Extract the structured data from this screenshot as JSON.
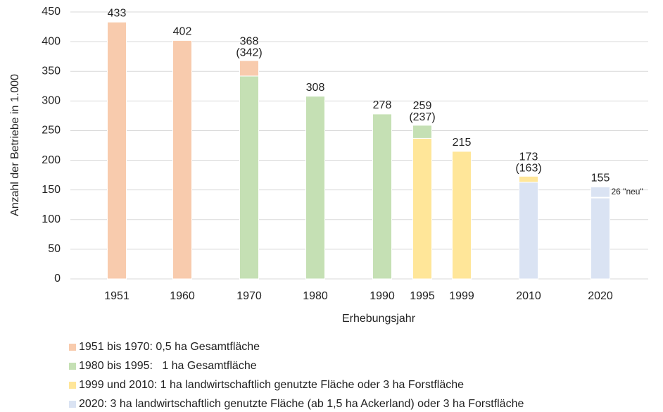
{
  "chart_data": {
    "type": "stacked_bar",
    "y_label": "Anzahl der Betriebe in 1.000",
    "x_label": "Erhebungsjahr",
    "categories": [
      "1951",
      "1960",
      "1970",
      "1980",
      "1990",
      "1995",
      "1999",
      "2010",
      "2020"
    ],
    "series": [
      {
        "name": "1951 bis 1970: 0,5 ha Gesamtfläche",
        "color": "#f8cbad",
        "values": [
          433,
          402,
          26,
          null,
          null,
          null,
          null,
          null,
          null
        ]
      },
      {
        "name": "1980 bis 1995:   1 ha Gesamtfläche",
        "color": "#c5e0b4",
        "values": [
          null,
          null,
          342,
          308,
          278,
          22,
          null,
          null,
          null
        ]
      },
      {
        "name": "1999 und 2010: 1 ha landwirtschaftlich genutzte Fläche oder 3 ha Forstfläche",
        "color": "#ffe699",
        "values": [
          null,
          null,
          null,
          null,
          null,
          237,
          215,
          10,
          null
        ]
      },
      {
        "name": "2020: 3 ha landwirtschaftlich genutzte Fläche (ab 1,5 ha Ackerland) oder 3 ha Forstfläche",
        "color": "#dae3f3",
        "values": [
          null,
          null,
          null,
          null,
          null,
          null,
          null,
          163,
          155
        ]
      }
    ],
    "totals": [
      433,
      402,
      368,
      308,
      278,
      259,
      215,
      173,
      155
    ],
    "sub_labels": [
      null,
      null,
      "(342)",
      null,
      null,
      "(237)",
      null,
      "(163)",
      null
    ],
    "annotation": {
      "text": "26 \"neu\"",
      "category": "2020",
      "y": 137
    },
    "ylim": [
      0,
      450
    ],
    "yticks": [
      0,
      50,
      100,
      150,
      200,
      250,
      300,
      350,
      400,
      450
    ],
    "grid": true
  }
}
